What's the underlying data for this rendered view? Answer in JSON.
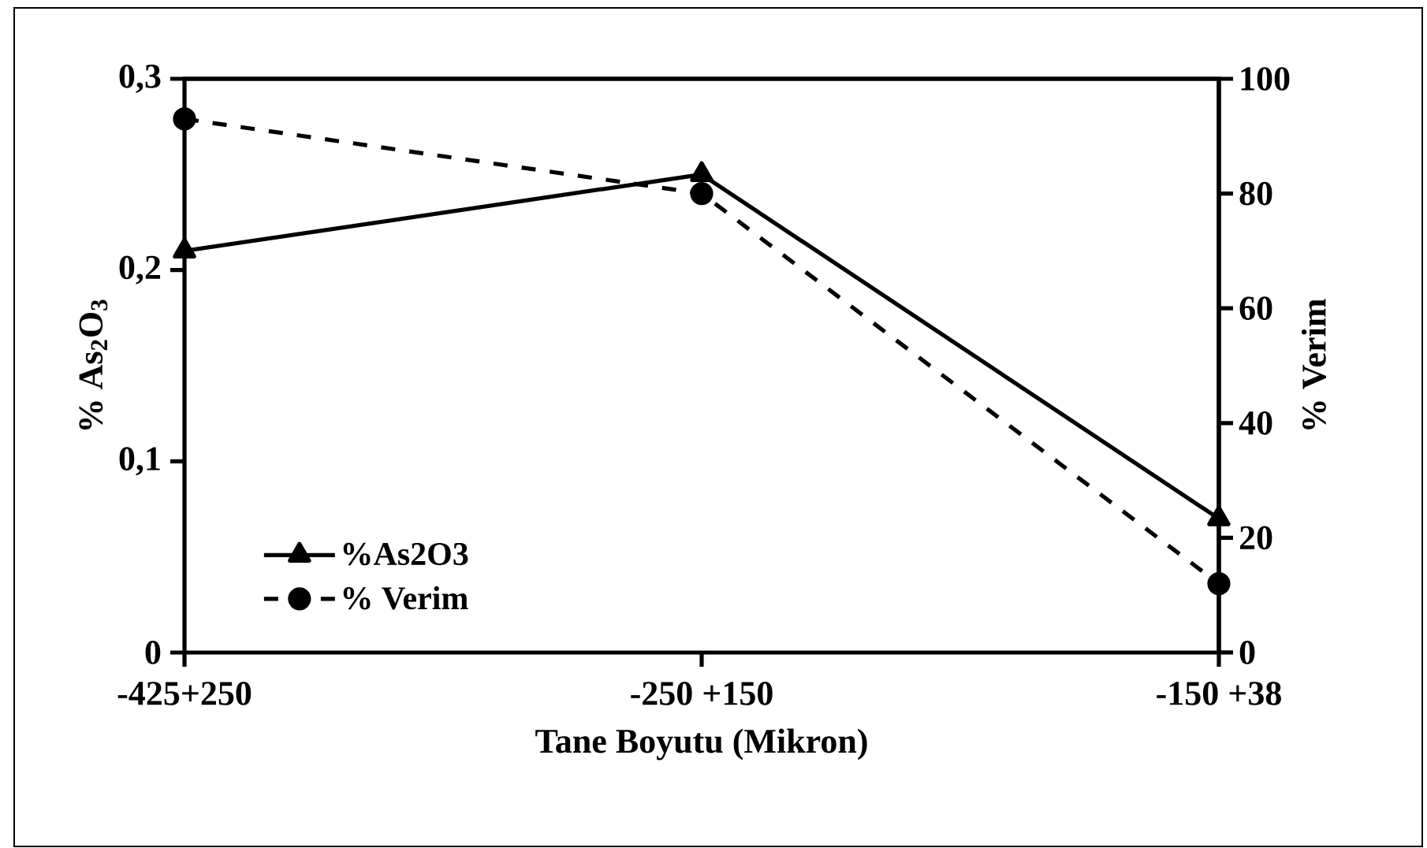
{
  "chart_data": {
    "type": "line",
    "xlabel": "Tane Boyutu (Mikron)",
    "ylabel": "% As$_{2}$O$_{3}$",
    "y2label": "% Verim",
    "categories": [
      "-425+250",
      "-250 +150",
      "-150 +38"
    ],
    "series": [
      {
        "name": "%As2O3",
        "color": "#000000",
        "values": [
          0.21,
          0.25,
          0.07
        ],
        "marker": "triangle",
        "line_style": "solid"
      },
      {
        "name": "% Verim",
        "color": "#000000",
        "values": [
          93,
          80,
          12
        ],
        "marker": "circle",
        "line_style": "dashed",
        "axis": "y2"
      }
    ],
    "ylim": [
      0,
      0.3
    ],
    "yticks": [
      0,
      {
        "value": 0.1,
        "label": "0,1"
      },
      {
        "value": 0.2,
        "label": "0,2"
      },
      {
        "value": 0.3,
        "label": "0,3"
      }
    ],
    "y2lim": [
      0,
      100
    ],
    "y2ticks": [
      0,
      20,
      40,
      60,
      80,
      100
    ],
    "legend": "bottom left",
    "grid": false
  }
}
